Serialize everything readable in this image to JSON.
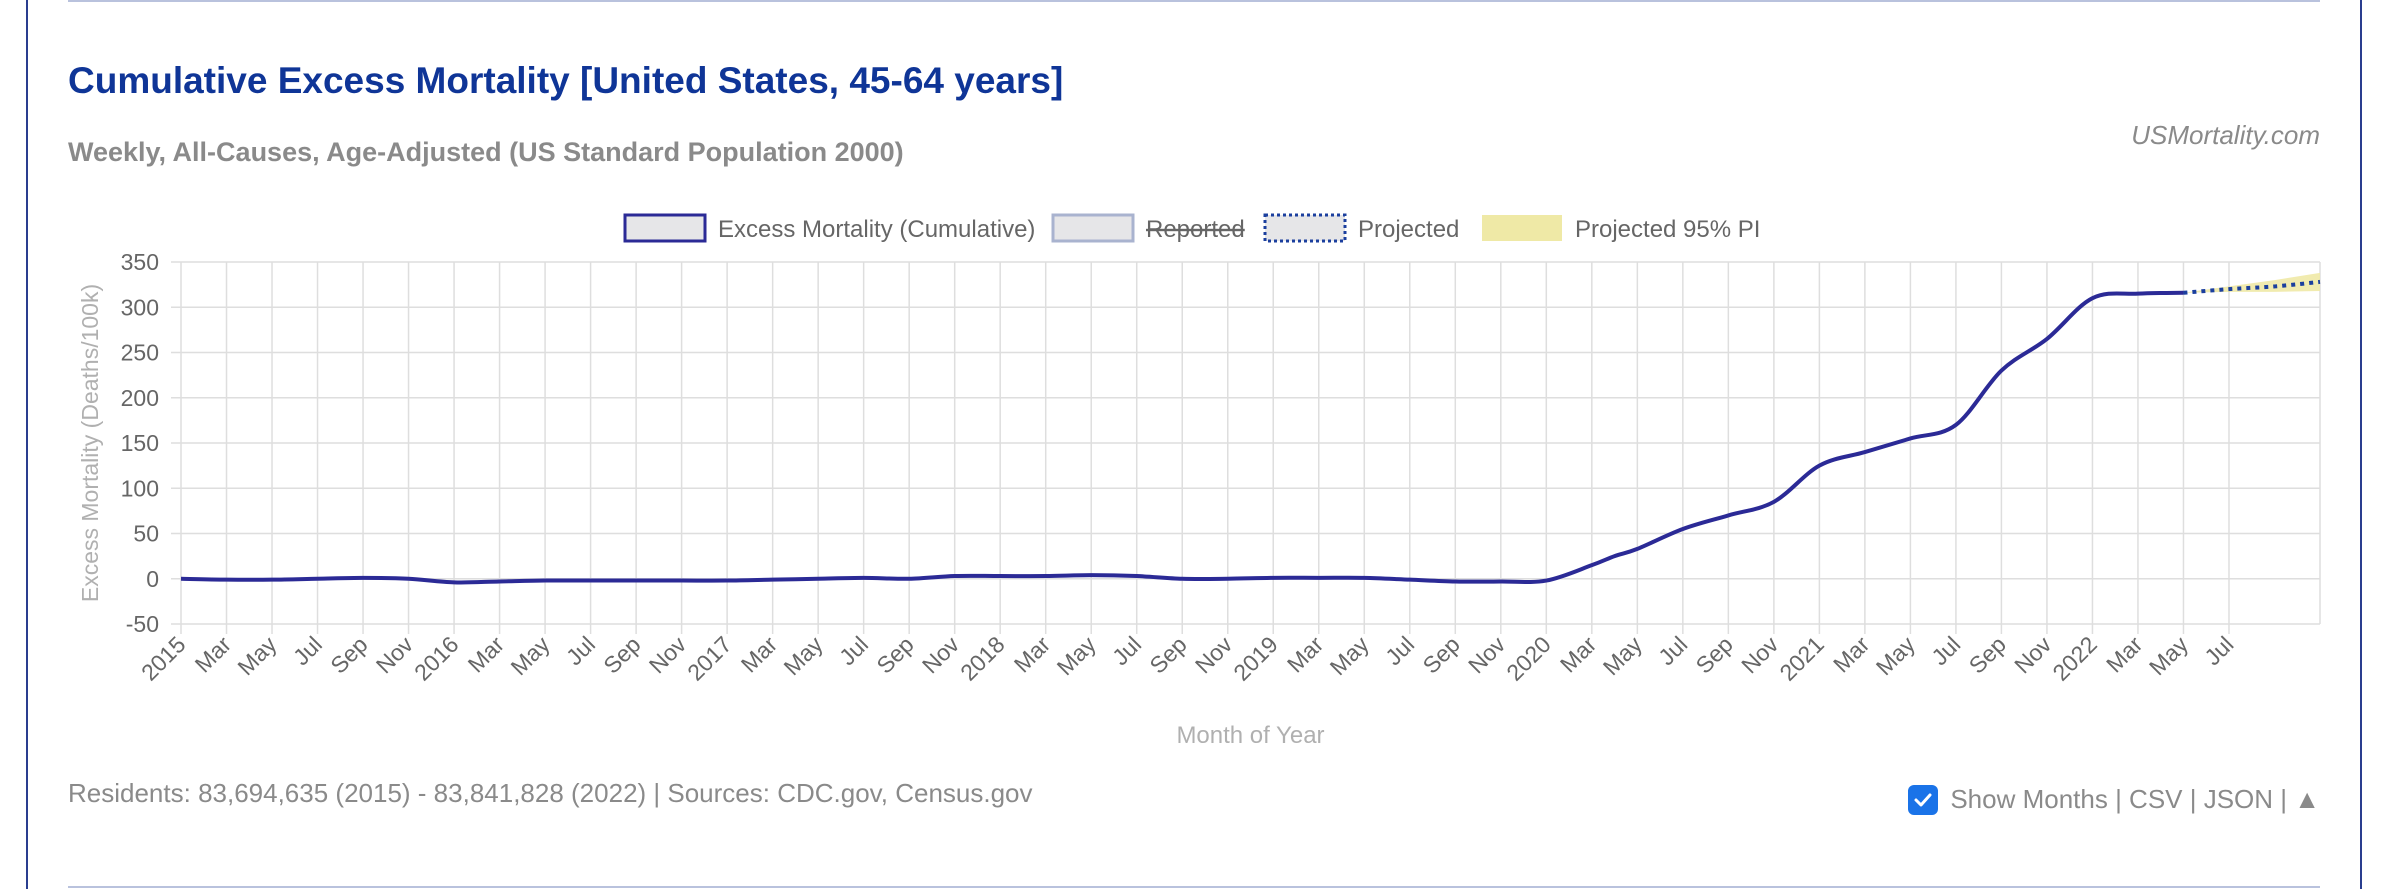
{
  "header": {
    "title": "Cumulative Excess Mortality [United States, 45-64 years]",
    "subtitle": "Weekly, All-Causes, Age-Adjusted (US Standard Population 2000)",
    "brand": "USMortality.com"
  },
  "legend": [
    {
      "label": "Excess Mortality (Cumulative)",
      "style": "solid",
      "strike": false
    },
    {
      "label": "Reported",
      "style": "grey",
      "strike": true
    },
    {
      "label": "Projected",
      "style": "dotted",
      "strike": false
    },
    {
      "label": "Projected 95% PI",
      "style": "band",
      "strike": false
    }
  ],
  "footer": {
    "sources": "Residents: 83,694,635 (2015) - 83,841,828 (2022) | Sources: CDC.gov, Census.gov",
    "show_months_label": "Show Months",
    "sep1": " | ",
    "csv": "CSV",
    "sep2": " | ",
    "json": "JSON",
    "sep3": " | ",
    "up_arrow": "▲",
    "show_months_checked": true
  },
  "colors": {
    "line": "#2b2a96",
    "projected": "#1b3f9e",
    "band": "#efe9a6",
    "grid": "#dedede",
    "axis_text": "#666666",
    "axis_title": "#b0b0b0"
  },
  "chart_data": {
    "type": "line",
    "xlabel": "Month of Year",
    "ylabel": "Excess Mortality (Deaths/100k)",
    "ylim": [
      -50,
      350
    ],
    "yticks": [
      -50,
      0,
      50,
      100,
      150,
      200,
      250,
      300,
      350
    ],
    "xlim": [
      0,
      47
    ],
    "grid": true,
    "legend_position": "top-center",
    "xtick_labels": [
      "2015",
      "Mar",
      "May",
      "Jul",
      "Sep",
      "Nov",
      "2016",
      "Mar",
      "May",
      "Jul",
      "Sep",
      "Nov",
      "2017",
      "Mar",
      "May",
      "Jul",
      "Sep",
      "Nov",
      "2018",
      "Mar",
      "May",
      "Jul",
      "Sep",
      "Nov",
      "2019",
      "Mar",
      "May",
      "Jul",
      "Sep",
      "Nov",
      "2020",
      "Mar",
      "May",
      "Jul",
      "Sep",
      "Nov",
      "2021",
      "Mar",
      "May",
      "Jul",
      "Sep",
      "Nov",
      "2022",
      "Mar",
      "May",
      "Jul"
    ],
    "series": [
      {
        "name": "Excess Mortality (Cumulative)",
        "x": [
          0,
          1,
          2,
          3,
          4,
          5,
          6,
          7,
          8,
          9,
          10,
          11,
          12,
          13,
          14,
          15,
          16,
          17,
          18,
          19,
          20,
          21,
          22,
          23,
          24,
          25,
          26,
          27,
          28,
          29,
          30,
          31,
          31.5,
          32,
          33,
          34,
          35,
          36,
          37,
          38,
          39,
          40,
          41,
          42,
          43,
          44
        ],
        "y": [
          0,
          -1,
          -1,
          0,
          1,
          0,
          -4,
          -3,
          -2,
          -2,
          -2,
          -2,
          -2,
          -1,
          0,
          1,
          0,
          3,
          3,
          3,
          4,
          3,
          0,
          0,
          1,
          1,
          1,
          -1,
          -3,
          -3,
          -2,
          15,
          25,
          33,
          55,
          70,
          85,
          125,
          140,
          155,
          170,
          230,
          265,
          310,
          315,
          316
        ]
      },
      {
        "name": "Projected",
        "x": [
          44,
          45,
          46,
          47
        ],
        "y": [
          316,
          320,
          323,
          328
        ]
      },
      {
        "name": "Projected 95% PI",
        "x": [
          44,
          45,
          46,
          47
        ],
        "lower": [
          316,
          317,
          317,
          318
        ],
        "upper": [
          316,
          323,
          330,
          338
        ]
      }
    ]
  }
}
